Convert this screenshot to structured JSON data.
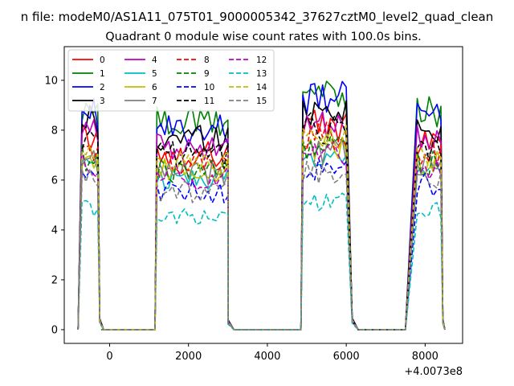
{
  "chart_data": {
    "type": "line",
    "suptitle": "n file: modeM0/AS1A11_075T01_9000005342_37627cztM0_level2_quad_clean",
    "title": "Quadrant 0 module wise count rates with 100.0s bins.",
    "xlabel": "",
    "ylabel": "",
    "x_offset_label": "+4.0073e8",
    "xlim": [
      -1150,
      8950
    ],
    "ylim": [
      -0.55,
      11.35
    ],
    "x_ticks": [
      0,
      2000,
      4000,
      6000,
      8000
    ],
    "y_ticks": [
      0,
      2,
      4,
      6,
      8,
      10
    ],
    "grid": false,
    "legend_position": "top-left",
    "legend_columns": 4,
    "segments": [
      {
        "x_start": -700,
        "x_end": -300,
        "points": 5
      },
      {
        "x_start": 1200,
        "x_end": 3000,
        "points": 19
      },
      {
        "x_start": 4900,
        "x_end": 6000,
        "points": 12
      },
      {
        "x_start": 7800,
        "x_end": 8400,
        "points": 7
      }
    ],
    "off_ranges": [
      [
        -200,
        1100
      ],
      [
        3200,
        4800
      ],
      [
        6300,
        7400
      ]
    ],
    "edges": [
      [
        -800,
        -250,
        -150
      ],
      [
        1150,
        3000,
        3150
      ],
      [
        4850,
        6150,
        6300
      ],
      [
        7500,
        8450,
        8500
      ]
    ],
    "series": [
      {
        "name": "0",
        "color": "#ff0000",
        "dash": "solid",
        "level": 7.7
      },
      {
        "name": "1",
        "color": "#008000",
        "dash": "solid",
        "level": 9.0
      },
      {
        "name": "2",
        "color": "#0000ff",
        "dash": "solid",
        "level": 8.7
      },
      {
        "name": "3",
        "color": "#000000",
        "dash": "solid",
        "level": 8.4
      },
      {
        "name": "4",
        "color": "#bf00bf",
        "dash": "solid",
        "level": 7.9
      },
      {
        "name": "5",
        "color": "#00bfbf",
        "dash": "solid",
        "level": 6.6
      },
      {
        "name": "6",
        "color": "#bfbf00",
        "dash": "solid",
        "level": 6.9
      },
      {
        "name": "7",
        "color": "#808080",
        "dash": "solid",
        "level": 6.8
      },
      {
        "name": "8",
        "color": "#ff0000",
        "dash": "dashed",
        "level": 7.3
      },
      {
        "name": "9",
        "color": "#008000",
        "dash": "dashed",
        "level": 6.9
      },
      {
        "name": "10",
        "color": "#0000ff",
        "dash": "dashed",
        "level": 6.0
      },
      {
        "name": "11",
        "color": "#000000",
        "dash": "dashed",
        "level": 7.6
      },
      {
        "name": "12",
        "color": "#bf00bf",
        "dash": "dashed",
        "level": 6.6
      },
      {
        "name": "13",
        "color": "#00bfbf",
        "dash": "dashed",
        "level": 4.9
      },
      {
        "name": "14",
        "color": "#bfbf00",
        "dash": "dashed",
        "level": 7.2
      },
      {
        "name": "15",
        "color": "#808080",
        "dash": "dashed",
        "level": 6.0
      }
    ]
  }
}
